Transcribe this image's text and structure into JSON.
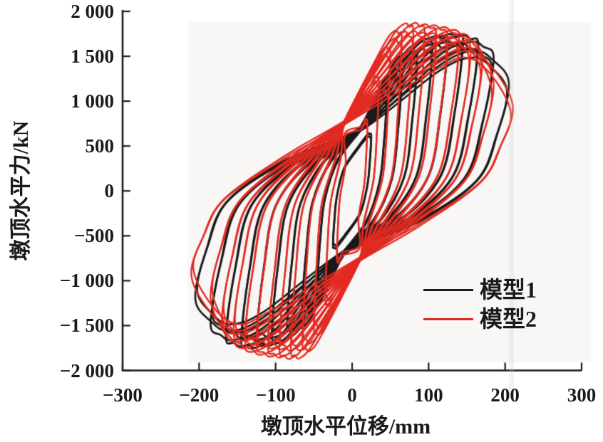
{
  "figure": {
    "kind": "hysteresis-curve comparison figure",
    "background": "#ffffff",
    "text_color": "#1a1a1a"
  },
  "axes": {
    "x": {
      "label": "墩顶水平位移/mm",
      "range": [
        -300,
        300
      ],
      "ticks": [
        {
          "value": -300,
          "label": "−300"
        },
        {
          "value": -200,
          "label": "−200"
        },
        {
          "value": -100,
          "label": "−100"
        },
        {
          "value": 0,
          "label": "0"
        },
        {
          "value": 100,
          "label": "100"
        },
        {
          "value": 200,
          "label": "200"
        },
        {
          "value": 300,
          "label": "300"
        }
      ]
    },
    "y": {
      "label": "墩顶水平力/kN",
      "range": [
        -2000,
        2000
      ],
      "ticks": [
        {
          "value": 2000,
          "label": "2 000"
        },
        {
          "value": 1500,
          "label": "1 500"
        },
        {
          "value": 1000,
          "label": "1 000"
        },
        {
          "value": 500,
          "label": "500"
        },
        {
          "value": 0,
          "label": "0"
        },
        {
          "value": -500,
          "label": "−500"
        },
        {
          "value": -1000,
          "label": "−1 000"
        },
        {
          "value": -1500,
          "label": "−1 500"
        },
        {
          "value": -2000,
          "label": "−2 000"
        }
      ]
    }
  },
  "legend": {
    "items": [
      {
        "label": "模型1",
        "color": "#1a1a1a"
      },
      {
        "label": "模型2",
        "color": "#e22a21"
      }
    ]
  },
  "chart_data": {
    "type": "line",
    "subtype": "cyclic-hysteresis-loops",
    "title": "",
    "xlabel": "墩顶水平位移/mm",
    "ylabel": "墩顶水平力/kN",
    "xlim": [
      -300,
      300
    ],
    "ylim": [
      -2000,
      2000
    ],
    "grid": false,
    "legend_position": "lower-right",
    "axes_style": "L-shape, inward ticks, no top/right frame",
    "description": "Point-symmetric pinched hysteresis loops of pier-top horizontal force vs displacement under cyclic loading; each amplitude cycled twice with slight strength degradation. Model 2 (red) is stiffer with higher peak (~1865 kN) and stronger degradation; Model 1 (black) peaks ~1740 kN with milder degradation.",
    "cycles_per_amplitude": 2,
    "second_cycle_degradation": {
      "amplitude": 0.988,
      "peak_force": 0.952,
      "end_force": 0.92
    },
    "series": [
      {
        "name": "模型1",
        "color": "#1a1a1a",
        "stroke_width": 2.7,
        "pinch_disp_mm": 8,
        "pinch_force_kN": 700,
        "cycles": [
          {
            "amplitude_mm": 25,
            "peak_force_kN": 640,
            "disp_at_peak_mm": 21,
            "force_at_max_disp_kN": 610
          },
          {
            "amplitude_mm": 45,
            "peak_force_kN": 1050,
            "disp_at_peak_mm": 39,
            "force_at_max_disp_kN": 1010
          },
          {
            "amplitude_mm": 65,
            "peak_force_kN": 1350,
            "disp_at_peak_mm": 56,
            "force_at_max_disp_kN": 1300
          },
          {
            "amplitude_mm": 85,
            "peak_force_kN": 1550,
            "disp_at_peak_mm": 73,
            "force_at_max_disp_kN": 1490
          },
          {
            "amplitude_mm": 105,
            "peak_force_kN": 1660,
            "disp_at_peak_mm": 90,
            "force_at_max_disp_kN": 1600
          },
          {
            "amplitude_mm": 125,
            "peak_force_kN": 1720,
            "disp_at_peak_mm": 107,
            "force_at_max_disp_kN": 1650
          },
          {
            "amplitude_mm": 145,
            "peak_force_kN": 1740,
            "disp_at_peak_mm": 124,
            "force_at_max_disp_kN": 1660
          },
          {
            "amplitude_mm": 165,
            "peak_force_kN": 1725,
            "disp_at_peak_mm": 141,
            "force_at_max_disp_kN": 1620
          },
          {
            "amplitude_mm": 185,
            "peak_force_kN": 1660,
            "disp_at_peak_mm": 155,
            "force_at_max_disp_kN": 1480
          },
          {
            "amplitude_mm": 205,
            "peak_force_kN": 1560,
            "disp_at_peak_mm": 160,
            "force_at_max_disp_kN": 1200
          }
        ]
      },
      {
        "name": "模型2",
        "color": "#e22a21",
        "stroke_width": 2.3,
        "pinch_disp_mm": -2,
        "pinch_force_kN": 780,
        "cycles": [
          {
            "amplitude_mm": 20,
            "peak_force_kN": 800,
            "disp_at_peak_mm": 17,
            "force_at_max_disp_kN": 760
          },
          {
            "amplitude_mm": 35,
            "peak_force_kN": 1280,
            "disp_at_peak_mm": 30,
            "force_at_max_disp_kN": 1210
          },
          {
            "amplitude_mm": 50,
            "peak_force_kN": 1600,
            "disp_at_peak_mm": 43,
            "force_at_max_disp_kN": 1520
          },
          {
            "amplitude_mm": 65,
            "peak_force_kN": 1780,
            "disp_at_peak_mm": 55,
            "force_at_max_disp_kN": 1690
          },
          {
            "amplitude_mm": 80,
            "peak_force_kN": 1860,
            "disp_at_peak_mm": 68,
            "force_at_max_disp_kN": 1760
          },
          {
            "amplitude_mm": 95,
            "peak_force_kN": 1865,
            "disp_at_peak_mm": 80,
            "force_at_max_disp_kN": 1755
          },
          {
            "amplitude_mm": 110,
            "peak_force_kN": 1850,
            "disp_at_peak_mm": 92,
            "force_at_max_disp_kN": 1730
          },
          {
            "amplitude_mm": 125,
            "peak_force_kN": 1840,
            "disp_at_peak_mm": 104,
            "force_at_max_disp_kN": 1700
          },
          {
            "amplitude_mm": 140,
            "peak_force_kN": 1820,
            "disp_at_peak_mm": 117,
            "force_at_max_disp_kN": 1650
          },
          {
            "amplitude_mm": 155,
            "peak_force_kN": 1790,
            "disp_at_peak_mm": 130,
            "force_at_max_disp_kN": 1560
          },
          {
            "amplitude_mm": 170,
            "peak_force_kN": 1750,
            "disp_at_peak_mm": 142,
            "force_at_max_disp_kN": 1420
          },
          {
            "amplitude_mm": 185,
            "peak_force_kN": 1680,
            "disp_at_peak_mm": 152,
            "force_at_max_disp_kN": 1180
          },
          {
            "amplitude_mm": 210,
            "peak_force_kN": 1560,
            "disp_at_peak_mm": 150,
            "force_at_max_disp_kN": 950
          }
        ]
      }
    ]
  }
}
